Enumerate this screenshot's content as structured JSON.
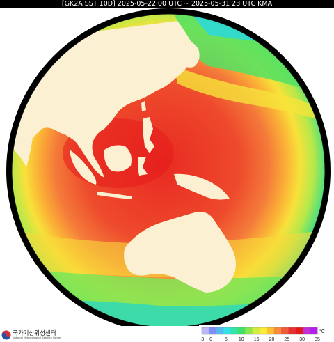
{
  "header": {
    "title": "[GK2A SST 10D]  2025-05-22 00 UTC ~ 2025-05-31 23 UTC KMA"
  },
  "map": {
    "projection": "full-disk",
    "variable": "SST",
    "land_color": "#fbf1d2",
    "space_color": "#000000"
  },
  "legend": {
    "unit": "°C",
    "ticks": [
      "-3",
      "0",
      "5",
      "10",
      "15",
      "20",
      "25",
      "30",
      "35"
    ],
    "tick_values": [
      -3,
      0,
      5,
      10,
      15,
      20,
      25,
      30,
      35
    ],
    "range": [
      -3,
      35
    ],
    "colors": [
      "#b9b9f8",
      "#7f8ef7",
      "#5bb7f0",
      "#35e0e6",
      "#30e5a6",
      "#3fe06a",
      "#8be74b",
      "#d4ec3f",
      "#fbeb39",
      "#fbc12f",
      "#f88a3b",
      "#f05a3c",
      "#e53030",
      "#e21a1a",
      "#c030d8",
      "#b020e8"
    ]
  },
  "logo": {
    "korean": "국가기상위성센터",
    "english": "National Meteorological Satellite Center",
    "colors": [
      "#d42f3b",
      "#2552a5"
    ]
  }
}
